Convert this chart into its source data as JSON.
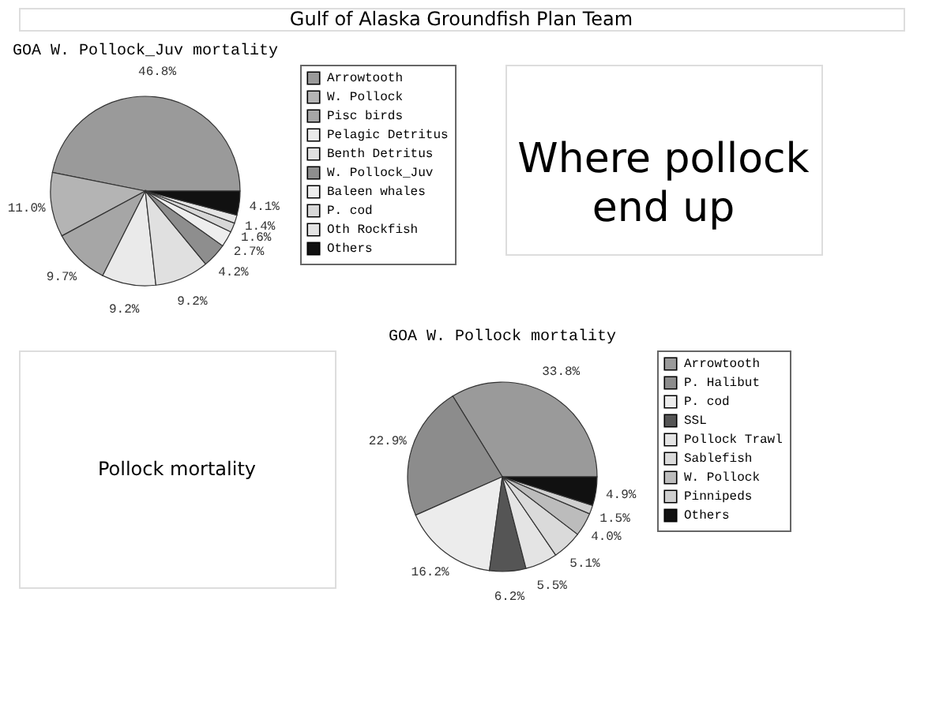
{
  "chart_data": [
    {
      "type": "pie",
      "title": "GOA W. Pollock_Juv mortality",
      "legend": "right",
      "categories": [
        "Arrowtooth",
        "W. Pollock",
        "Pisc birds",
        "Pelagic Detritus",
        "Benth Detritus",
        "W. Pollock_Juv",
        "Baleen whales",
        "P. cod",
        "Oth Rockfish",
        "Others"
      ],
      "values": [
        46.8,
        11.0,
        9.7,
        9.2,
        9.2,
        4.2,
        2.7,
        1.6,
        1.4,
        4.1
      ],
      "value_labels": [
        "46.8%",
        "11.0%",
        "9.7%",
        "9.2%",
        "9.2%",
        "4.2%",
        "2.7%",
        "1.6%",
        "1.4%",
        "4.1%"
      ],
      "colors": [
        "#9a9a9a",
        "#b4b4b4",
        "#a6a6a6",
        "#eaeaea",
        "#e0e0e0",
        "#8e8e8e",
        "#eeeeee",
        "#d8d8d8",
        "#e4e4e4",
        "#111111"
      ]
    },
    {
      "type": "pie",
      "title": "GOA W. Pollock mortality",
      "legend": "right",
      "categories": [
        "Arrowtooth",
        "P. Halibut",
        "P. cod",
        "SSL",
        "Pollock Trawl",
        "Sablefish",
        "W. Pollock",
        "Pinnipeds",
        "Others"
      ],
      "values": [
        33.8,
        22.9,
        16.2,
        6.2,
        5.5,
        5.1,
        4.0,
        1.5,
        4.9
      ],
      "value_labels": [
        "33.8%",
        "22.9%",
        "16.2%",
        "6.2%",
        "5.5%",
        "5.1%",
        "4.0%",
        "1.5%",
        "4.9%"
      ],
      "colors": [
        "#9a9a9a",
        "#8c8c8c",
        "#ececec",
        "#555555",
        "#e4e4e4",
        "#dadada",
        "#bcbcbc",
        "#cfcfcf",
        "#111111"
      ]
    },
    {
      "type": "other",
      "annotations": [
        "Gulf of Alaska Groundfish Plan Team",
        "Where pollock end up",
        "Pollock mortality"
      ]
    }
  ]
}
